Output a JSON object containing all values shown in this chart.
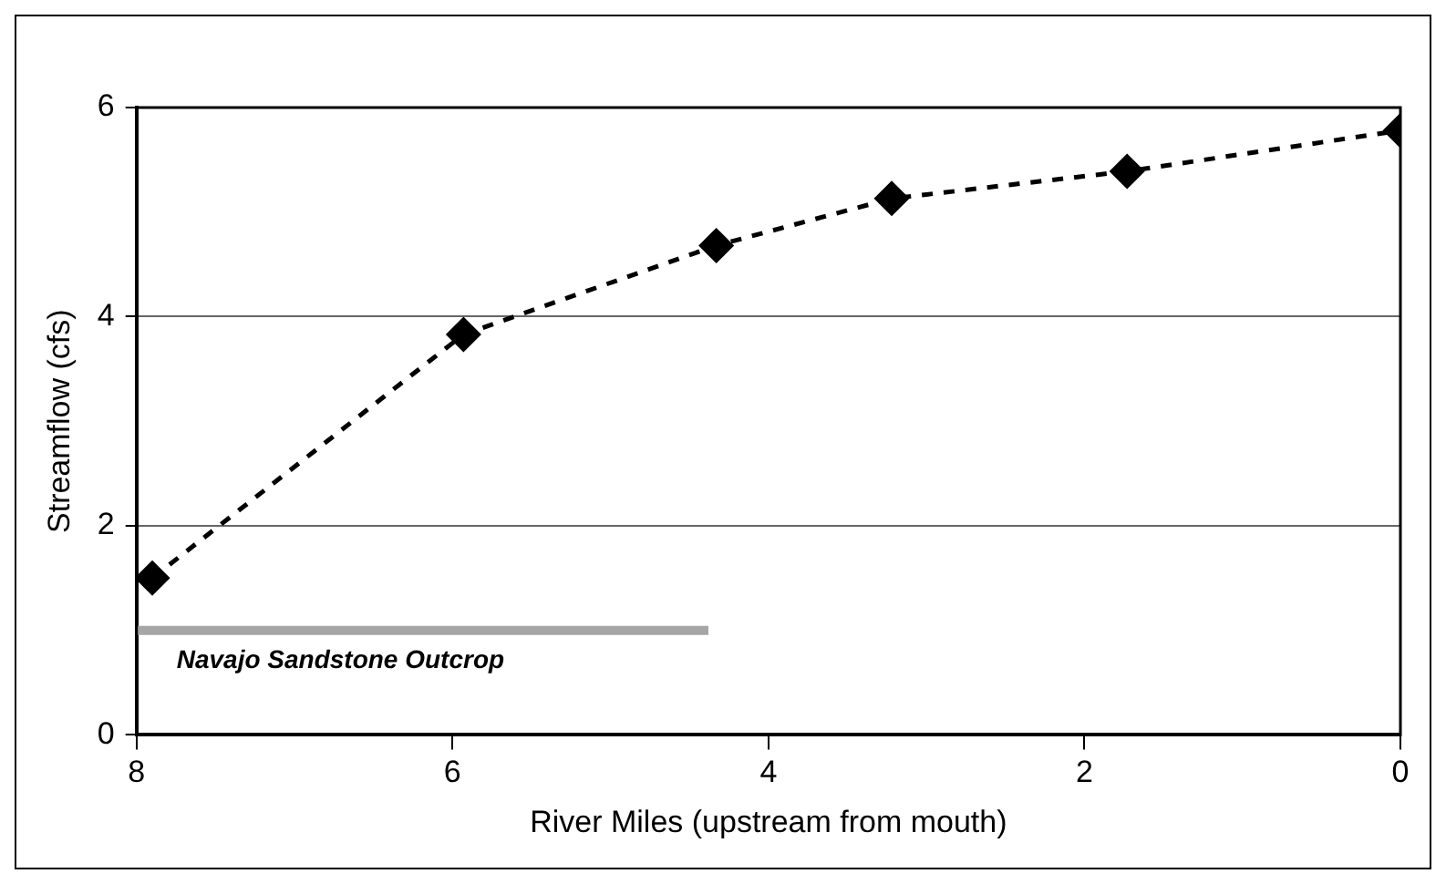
{
  "chart_data": {
    "type": "line",
    "xlabel": "River Miles (upstream from mouth)",
    "ylabel": "Streamflow (cfs)",
    "xlim": [
      8,
      0
    ],
    "xticks": [
      8,
      6,
      4,
      2,
      0
    ],
    "ylim": [
      0,
      6
    ],
    "yticks": [
      0,
      2,
      4,
      6
    ],
    "grid": "y",
    "series": [
      {
        "x": [
          7.9,
          5.93,
          4.33,
          3.22,
          1.73,
          0
        ],
        "values": [
          1.5,
          3.83,
          4.68,
          5.13,
          5.39,
          5.78
        ],
        "color": "#000000",
        "marker": "diamond",
        "line_style": "dashed"
      },
      {
        "name": "Navajo Sandstone Outcrop",
        "x": [
          8,
          4.38
        ],
        "values": [
          1,
          1
        ],
        "color": "#a6a6a6",
        "marker": "none",
        "line_style": "solid"
      }
    ]
  }
}
